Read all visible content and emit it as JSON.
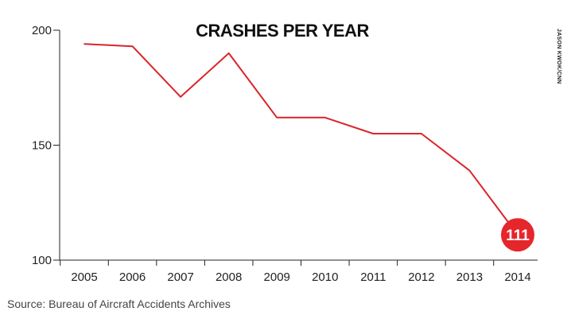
{
  "chart_data": {
    "type": "line",
    "title": "CRASHES PER YEAR",
    "x": [
      2005,
      2006,
      2007,
      2008,
      2009,
      2010,
      2011,
      2012,
      2013,
      2014
    ],
    "x_tick_labels": [
      "2005",
      "2006",
      "2007",
      "2008",
      "2009",
      "2010",
      "2011",
      "2012",
      "2013",
      "2014"
    ],
    "series": [
      {
        "values": [
          194,
          193,
          171,
          190,
          162,
          162,
          155,
          155,
          139,
          111
        ]
      }
    ],
    "ylim": [
      100,
      200
    ],
    "y_ticks": [
      100,
      150,
      200
    ],
    "y_tick_labels": [
      "100",
      "150",
      "200"
    ],
    "highlight": {
      "x": 2014,
      "value": 111,
      "label": "111"
    },
    "grid": false,
    "line_color": "#d9252a",
    "marker_color": "#e5262b"
  },
  "source": "Source: Bureau of Aircraft Accidents Archives",
  "credit": "JASON KWOK/CNN"
}
